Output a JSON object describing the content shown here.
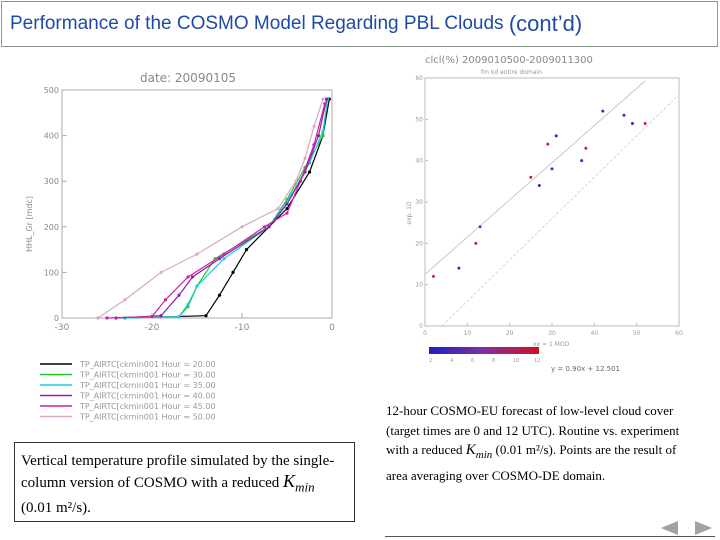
{
  "slide": {
    "title_main": "Performance of the COSMO Model Regarding PBL Clouds",
    "title_suffix": "(cont’d)"
  },
  "left_figure": {
    "date_label": "date:  20090105",
    "ylabel": "HHL_Gr [mdc]",
    "legend": [
      {
        "label": "TP_AIRTC[ckmin001  Hour = 20.00",
        "color": "#000000"
      },
      {
        "label": "TP_AIRTC[ckmin001  Hour = 30.00",
        "color": "#22cc22"
      },
      {
        "label": "TP_AIRTC[ckmin001  Hour = 35.00",
        "color": "#22c8e0"
      },
      {
        "label": "TP_AIRTC[ckmin001  Hour = 40.00",
        "color": "#8a1fb0"
      },
      {
        "label": "TP_AIRTC[ckmin001  Hour = 45.00",
        "color": "#d020a0"
      },
      {
        "label": "TP_AIRTC[ckmin001  Hour = 50.00",
        "color": "#d8a8c8"
      }
    ]
  },
  "right_figure": {
    "title": "clcl(%)    2009010500-2009011300",
    "subtitle": "fm    kd  entire domain",
    "ylabel": "exp. 1D",
    "xlabel": "xx = 1 MOD",
    "regression": "y   =   0.90x  +  12.501",
    "colorbar_labels": [
      "2",
      "4",
      "6",
      "8",
      "10",
      "12"
    ]
  },
  "chart_data": [
    {
      "type": "line",
      "title": "date:  20090105",
      "xlabel": "",
      "ylabel": "HHL_Gr [mdc]",
      "xlim": [
        -30,
        0
      ],
      "ylim": [
        0,
        500
      ],
      "xticks": [
        -30,
        -20,
        -10,
        0
      ],
      "yticks": [
        0,
        100,
        200,
        300,
        400,
        500
      ],
      "series": [
        {
          "name": "TP_AIRTC[ckmin001  Hour = 20.00",
          "color": "#000000",
          "points": [
            [
              -23,
              0
            ],
            [
              -14,
              5
            ],
            [
              -12.5,
              50
            ],
            [
              -11,
              100
            ],
            [
              -9.5,
              150
            ],
            [
              -7,
              200
            ],
            [
              -5,
              240
            ],
            [
              -2.5,
              320
            ],
            [
              -1,
              400
            ],
            [
              -0.3,
              480
            ]
          ]
        },
        {
          "name": "TP_AIRTC[ckmin001  Hour = 30.00",
          "color": "#22cc22",
          "points": [
            [
              -23,
              0
            ],
            [
              -17,
              3
            ],
            [
              -16,
              25
            ],
            [
              -15,
              70
            ],
            [
              -13,
              130
            ],
            [
              -7,
              200
            ],
            [
              -5,
              260
            ],
            [
              -3,
              330
            ],
            [
              -1,
              400
            ],
            [
              -0.5,
              480
            ]
          ]
        },
        {
          "name": "TP_AIRTC[ckmin001  Hour = 35.00",
          "color": "#22c8e0",
          "points": [
            [
              -23,
              0
            ],
            [
              -17,
              3
            ],
            [
              -16,
              30
            ],
            [
              -15,
              70
            ],
            [
              -12,
              130
            ],
            [
              -7,
              200
            ],
            [
              -4.5,
              270
            ],
            [
              -2.5,
              340
            ],
            [
              -1,
              410
            ],
            [
              -0.5,
              480
            ]
          ]
        },
        {
          "name": "TP_AIRTC[ckmin001  Hour = 40.00",
          "color": "#8a1fb0",
          "points": [
            [
              -24,
              0
            ],
            [
              -19,
              5
            ],
            [
              -17,
              50
            ],
            [
              -15.5,
              90
            ],
            [
              -12.5,
              130
            ],
            [
              -7,
              200
            ],
            [
              -5,
              250
            ],
            [
              -3,
              320
            ],
            [
              -1.5,
              400
            ],
            [
              -0.6,
              480
            ]
          ]
        },
        {
          "name": "TP_AIRTC[ckmin001  Hour = 45.00",
          "color": "#d020a0",
          "points": [
            [
              -25,
              0
            ],
            [
              -20,
              3
            ],
            [
              -18.5,
              40
            ],
            [
              -16,
              90
            ],
            [
              -12,
              140
            ],
            [
              -7.5,
              200
            ],
            [
              -5,
              230
            ],
            [
              -3.5,
              300
            ],
            [
              -2,
              380
            ],
            [
              -0.8,
              470
            ]
          ]
        },
        {
          "name": "TP_AIRTC[ckmin001  Hour = 50.00",
          "color": "#d8a8c8",
          "points": [
            [
              -26,
              0
            ],
            [
              -23,
              40
            ],
            [
              -19,
              100
            ],
            [
              -15,
              140
            ],
            [
              -10,
              200
            ],
            [
              -6,
              240
            ],
            [
              -4,
              300
            ],
            [
              -3,
              350
            ],
            [
              -2,
              420
            ],
            [
              -1,
              480
            ]
          ]
        }
      ]
    },
    {
      "type": "scatter",
      "title": "clcl(%)    2009010500-2009011300",
      "xlabel": "xx = 1 MOD",
      "ylabel": "exp. 1D",
      "xlim": [
        0,
        60
      ],
      "ylim": [
        0,
        60
      ],
      "xticks": [
        0,
        10,
        20,
        30,
        40,
        50,
        60
      ],
      "yticks": [
        0,
        10,
        20,
        30,
        40,
        50,
        60
      ],
      "regression": {
        "slope": 0.9,
        "intercept": 12.501
      },
      "points": [
        {
          "x": 2,
          "y": 12,
          "color": "#d02040"
        },
        {
          "x": 8,
          "y": 14,
          "color": "#3030c0"
        },
        {
          "x": 12,
          "y": 20,
          "color": "#d02040"
        },
        {
          "x": 13,
          "y": 24,
          "color": "#4040d0"
        },
        {
          "x": 25,
          "y": 36,
          "color": "#d02040"
        },
        {
          "x": 27,
          "y": 34,
          "color": "#3030c0"
        },
        {
          "x": 30,
          "y": 38,
          "color": "#3030c0"
        },
        {
          "x": 29,
          "y": 44,
          "color": "#d02040"
        },
        {
          "x": 31,
          "y": 46,
          "color": "#3030c0"
        },
        {
          "x": 37,
          "y": 40,
          "color": "#3030c0"
        },
        {
          "x": 38,
          "y": 43,
          "color": "#d02040"
        },
        {
          "x": 42,
          "y": 52,
          "color": "#3030c0"
        },
        {
          "x": 47,
          "y": 51,
          "color": "#3030c0"
        },
        {
          "x": 49,
          "y": 49,
          "color": "#3030c0"
        },
        {
          "x": 52,
          "y": 49,
          "color": "#d02040"
        }
      ]
    }
  ],
  "captions": {
    "left_pre": "Vertical temperature profile simulated by the single-column version of COSMO with a reduced ",
    "left_kmin": "Kmin",
    "left_post": " (0.01 m²/s).",
    "right_pre": "12-hour COSMO-EU forecast of low-level cloud cover (target times are 0 and 12 UTC). Routine vs. experiment with a reduced ",
    "right_kmin": "Kmin",
    "right_post": " (0.01 m²/s). Points are the result of area averaging over COSMO-DE domain."
  },
  "nav": {
    "prev_icon": "triangle-left-icon",
    "next_icon": "triangle-right-icon"
  }
}
